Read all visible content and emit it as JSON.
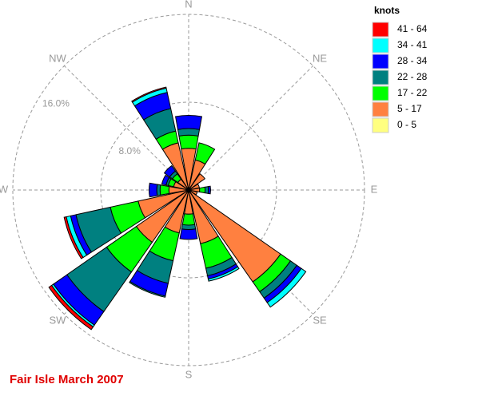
{
  "chart_data": {
    "type": "windrose",
    "title": "Fair Isle  March 2007",
    "legend_title": "knots",
    "categories": [
      "N",
      null,
      "NE",
      null,
      "E",
      null,
      "SE",
      null,
      "S",
      null,
      "SW",
      null,
      "W",
      null,
      "NW",
      null
    ],
    "series": [
      {
        "name": "0 - 5",
        "color": "#ffff80",
        "values": [
          0.2,
          0.2,
          0.2,
          0.2,
          0.2,
          0.2,
          0.2,
          0.2,
          0.2,
          0.2,
          0.2,
          0.2,
          0.2,
          0.2,
          0.2,
          0.2
        ]
      },
      {
        "name": "5 - 17",
        "color": "#ff8040",
        "values": [
          3.6,
          2.6,
          1.6,
          0.8,
          0.8,
          0.6,
          10,
          4.8,
          2,
          3.8,
          5.6,
          4.5,
          1.6,
          1.2,
          1,
          4.2
        ]
      },
      {
        "name": "17 - 22",
        "color": "#00ff00",
        "values": [
          1.2,
          1.6,
          0,
          0,
          0.5,
          0,
          1.1,
          2.3,
          1,
          2.6,
          3.3,
          2.6,
          0.8,
          0.5,
          0.6,
          1.1
        ]
      },
      {
        "name": "22 - 28",
        "color": "#008080",
        "values": [
          0.6,
          0,
          0,
          0,
          0.3,
          0,
          0.7,
          0.7,
          0.4,
          2.1,
          4.4,
          3.2,
          0.3,
          0.2,
          0.3,
          2.1
        ]
      },
      {
        "name": "28 - 34",
        "color": "#0000ff",
        "values": [
          1.2,
          0,
          0,
          0,
          0.2,
          0,
          0.5,
          0.3,
          0.9,
          1.2,
          1.5,
          0.5,
          0.7,
          0.4,
          0.6,
          1.5
        ]
      },
      {
        "name": "34 - 41",
        "color": "#00ffff",
        "values": [
          0,
          0,
          0,
          0,
          0,
          0,
          0.5,
          0.2,
          0,
          0.1,
          0.2,
          0.4,
          0,
          0,
          0,
          0.4
        ]
      },
      {
        "name": "41 - 64",
        "color": "#ff0000",
        "values": [
          0,
          0,
          0,
          0,
          0,
          0,
          0,
          0,
          0,
          0,
          0.3,
          0.2,
          0,
          0,
          0,
          0.1
        ]
      }
    ],
    "rlim": [
      0,
      16
    ],
    "rticks": [
      {
        "value": 8,
        "label": "8.0%"
      },
      {
        "value": 16,
        "label": "16.0%"
      }
    ]
  }
}
